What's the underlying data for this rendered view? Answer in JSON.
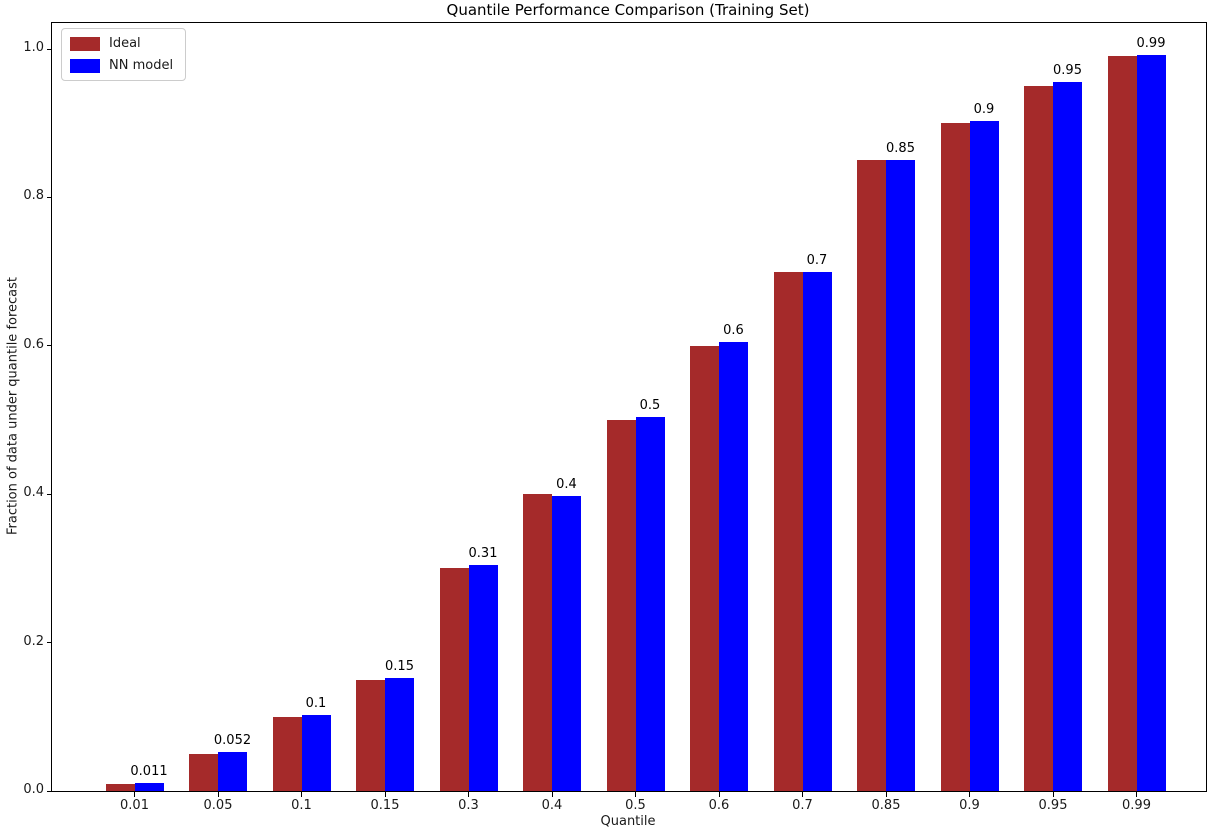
{
  "chart_data": {
    "type": "bar",
    "title": "Quantile Performance Comparison (Training Set)",
    "xlabel": "Quantile",
    "ylabel": "Fraction of data under quantile forecast",
    "categories": [
      "0.01",
      "0.05",
      "0.1",
      "0.15",
      "0.3",
      "0.4",
      "0.5",
      "0.6",
      "0.7",
      "0.85",
      "0.9",
      "0.95",
      "0.99"
    ],
    "series": [
      {
        "name": "Ideal",
        "color": "#A52A2A",
        "values": [
          0.01,
          0.05,
          0.1,
          0.15,
          0.3,
          0.4,
          0.5,
          0.6,
          0.7,
          0.85,
          0.9,
          0.95,
          0.99
        ]
      },
      {
        "name": "NN model",
        "color": "#0000FF",
        "values": [
          0.011,
          0.052,
          0.102,
          0.152,
          0.305,
          0.397,
          0.504,
          0.605,
          0.7,
          0.851,
          0.903,
          0.955,
          0.992
        ]
      }
    ],
    "bar_labels": [
      "0.011",
      "0.052",
      "0.1",
      "0.15",
      "0.31",
      "0.4",
      "0.5",
      "0.6",
      "0.7",
      "0.85",
      "0.9",
      "0.95",
      "0.99"
    ],
    "yticks": [
      "0.0",
      "0.2",
      "0.4",
      "0.6",
      "0.8",
      "1.0"
    ],
    "ylim": [
      0.0,
      1.035
    ],
    "grid": false,
    "legend_position": "upper left"
  }
}
